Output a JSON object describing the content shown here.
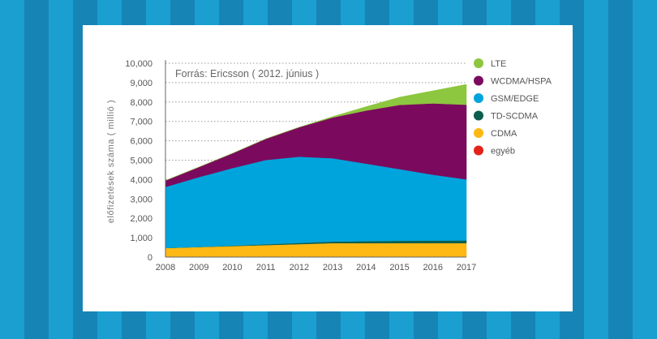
{
  "chart_data": {
    "type": "area",
    "source_note": "Forrás: Ericsson ( 2012. június )",
    "ylabel": "előfizetések száma ( millió )",
    "xlabel": "",
    "x": [
      "2008",
      "2009",
      "2010",
      "2011",
      "2012",
      "2013",
      "2014",
      "2015",
      "2016",
      "2017"
    ],
    "ylim": [
      0,
      10000
    ],
    "y_ticks": [
      "0",
      "1,000",
      "2,000",
      "3,000",
      "4,000",
      "5,000",
      "6,000",
      "7,000",
      "8,000",
      "9,000",
      "10,000"
    ],
    "grid": true,
    "legend_position": "right",
    "stacked": true,
    "series": [
      {
        "name": "egyéb",
        "color": "#e2231a",
        "values": [
          20,
          20,
          20,
          20,
          20,
          20,
          20,
          20,
          20,
          20
        ]
      },
      {
        "name": "CDMA",
        "color": "#fdb813",
        "values": [
          450,
          500,
          550,
          600,
          650,
          700,
          700,
          700,
          700,
          700
        ]
      },
      {
        "name": "TD-SCDMA",
        "color": "#0b5e4f",
        "values": [
          0,
          5,
          20,
          40,
          60,
          80,
          100,
          120,
          130,
          140
        ]
      },
      {
        "name": "GSM/EDGE",
        "color": "#00a4dc",
        "values": [
          3150,
          3600,
          4000,
          4350,
          4450,
          4300,
          4000,
          3700,
          3400,
          3150
        ]
      },
      {
        "name": "WCDMA/HSPA",
        "color": "#7b0a5e",
        "values": [
          330,
          520,
          760,
          1090,
          1520,
          2100,
          2740,
          3310,
          3680,
          3850
        ]
      },
      {
        "name": "LTE",
        "color": "#8dc63f",
        "values": [
          0,
          0,
          0,
          0,
          0,
          50,
          200,
          400,
          650,
          1050
        ]
      }
    ]
  }
}
